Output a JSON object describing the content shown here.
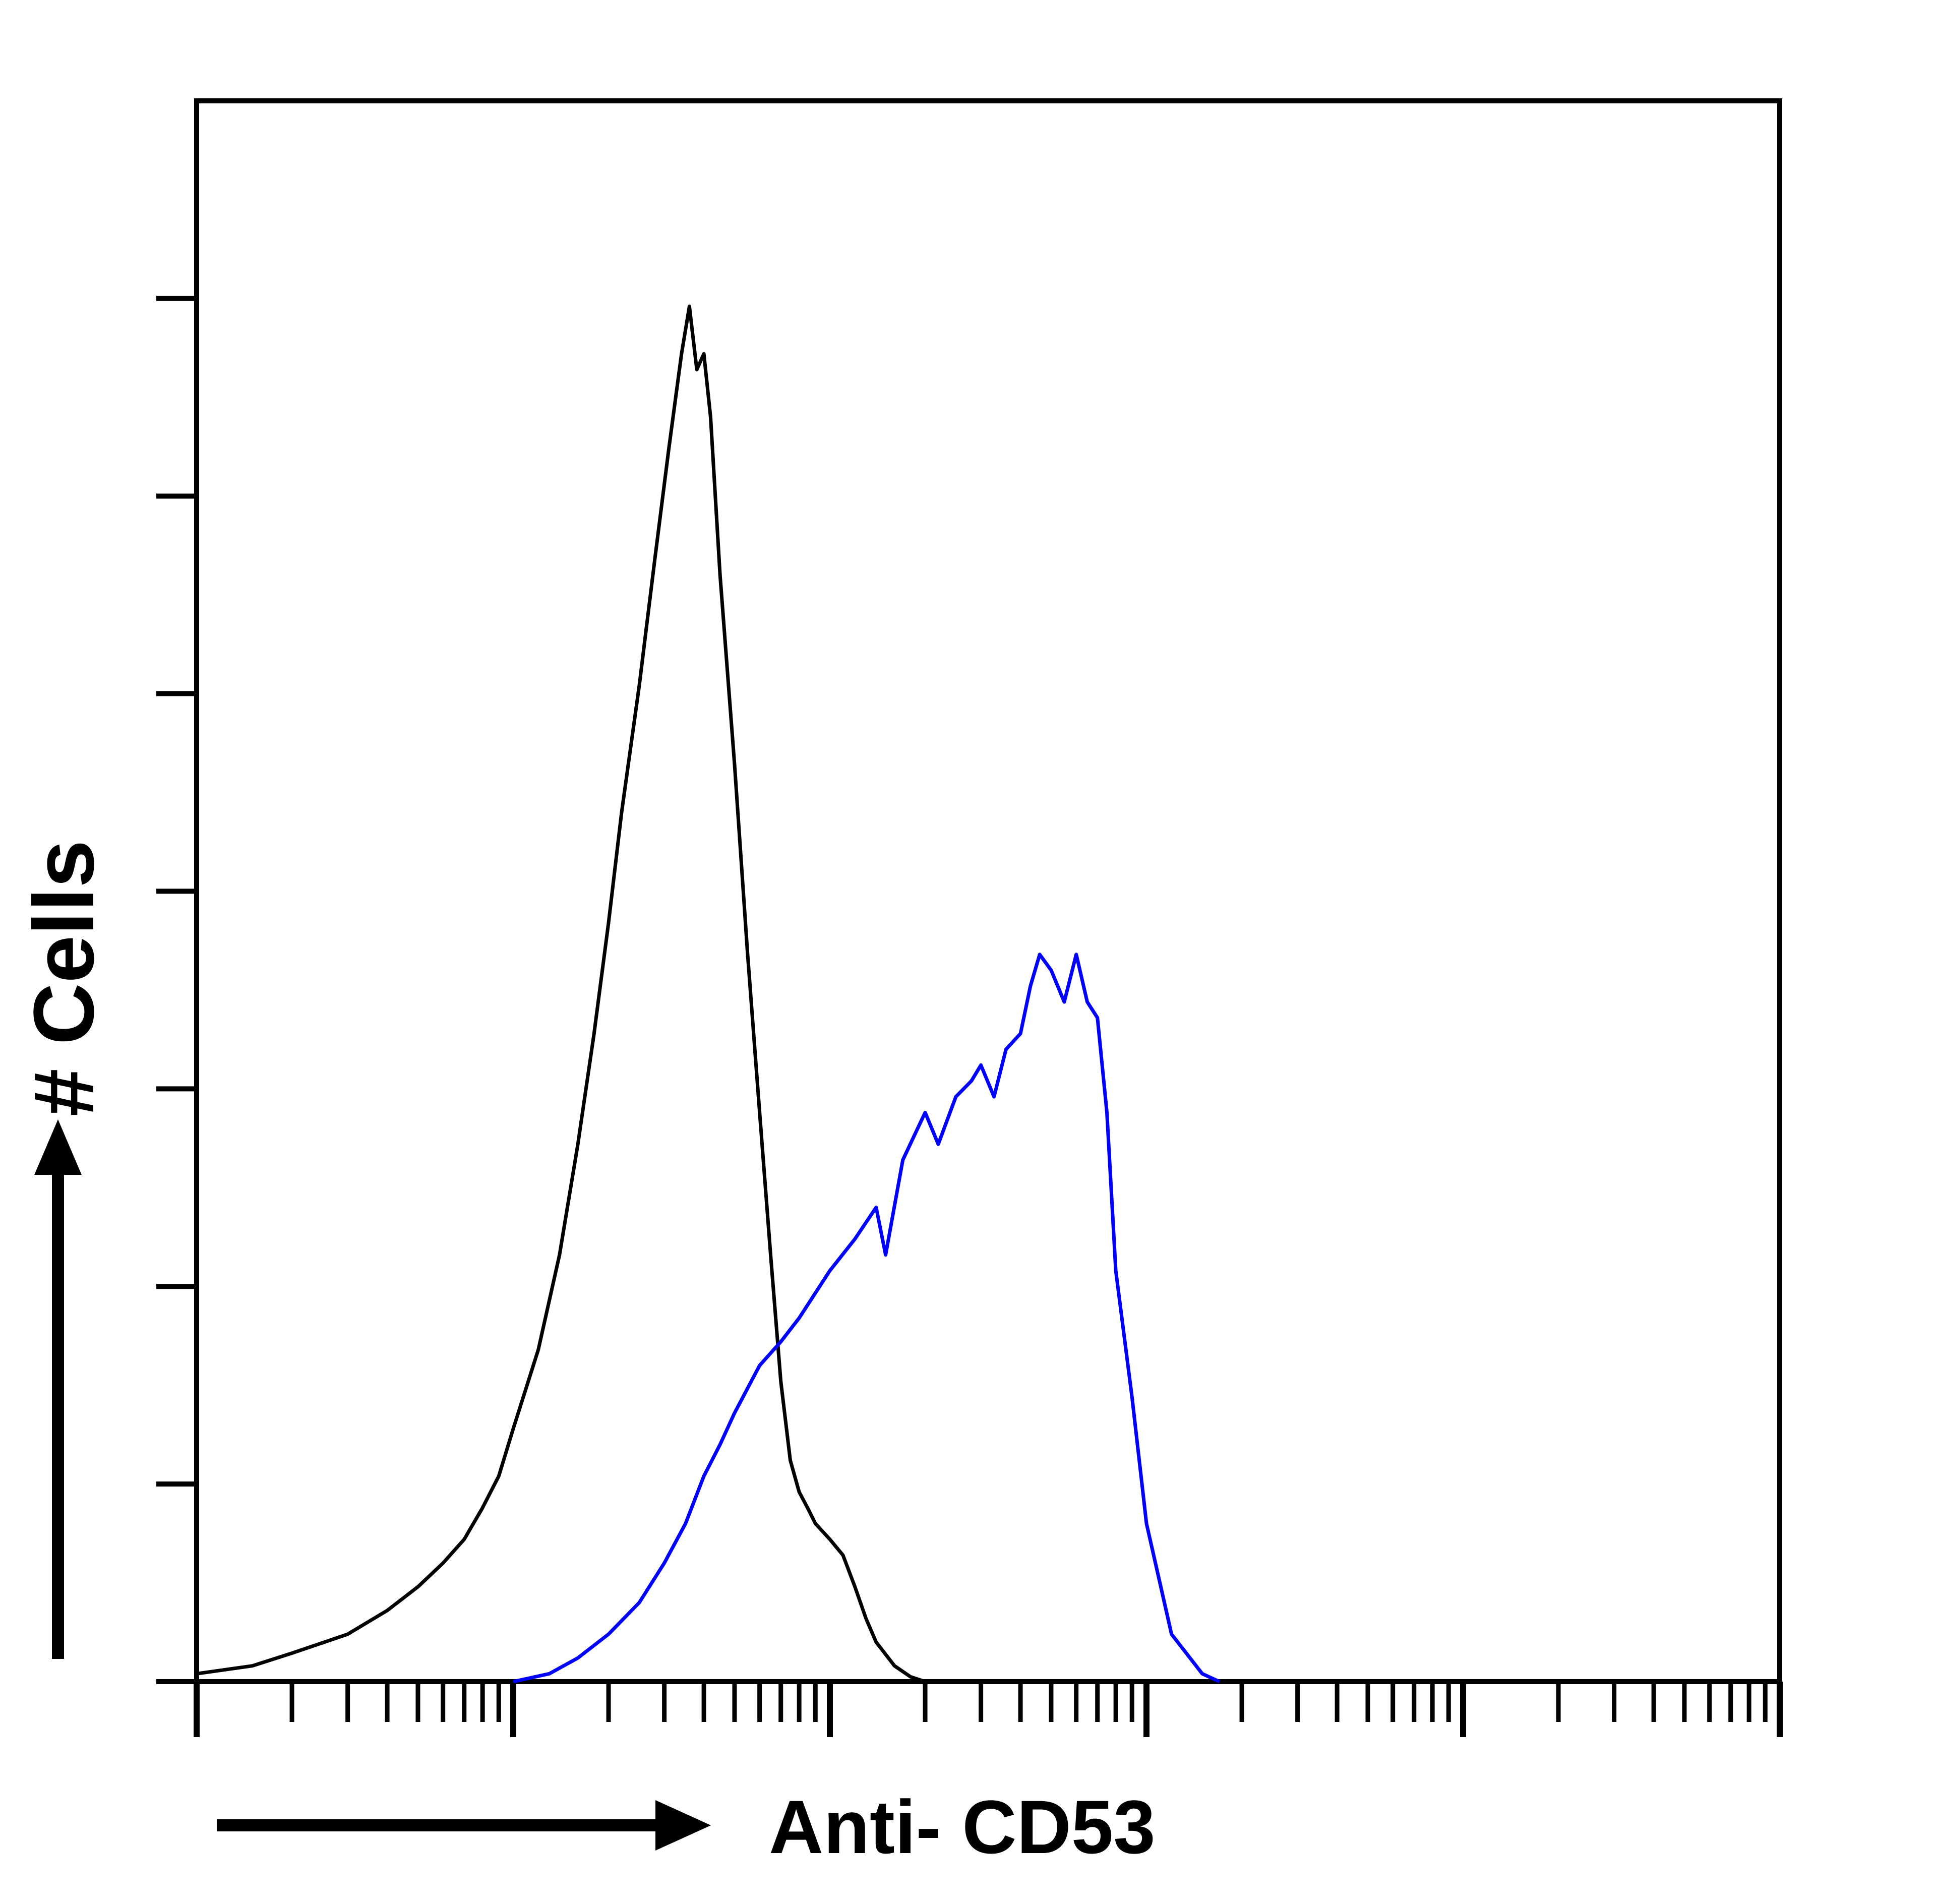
{
  "chart_data": {
    "type": "line",
    "title": "",
    "xlabel": "Anti- CD53",
    "ylabel": "# Cells",
    "xscale": "log",
    "xlim": [
      1,
      100000
    ],
    "ylim": [
      0,
      100
    ],
    "grid": false,
    "legend": "none",
    "series": [
      {
        "color": "#000000",
        "points": [
          [
            1,
            0.5
          ],
          [
            1.5,
            1
          ],
          [
            2,
            1.8
          ],
          [
            3,
            3
          ],
          [
            4,
            4.5
          ],
          [
            5,
            6
          ],
          [
            6,
            7.5
          ],
          [
            7,
            9
          ],
          [
            8,
            11
          ],
          [
            9,
            13
          ],
          [
            10,
            16
          ],
          [
            12,
            21
          ],
          [
            14,
            27
          ],
          [
            16,
            34
          ],
          [
            18,
            41
          ],
          [
            20,
            48
          ],
          [
            22,
            55
          ],
          [
            25,
            63
          ],
          [
            28,
            71
          ],
          [
            31,
            78
          ],
          [
            34,
            84
          ],
          [
            36,
            87
          ],
          [
            38,
            83
          ],
          [
            40,
            84
          ],
          [
            42,
            80
          ],
          [
            45,
            70
          ],
          [
            50,
            58
          ],
          [
            55,
            46
          ],
          [
            60,
            36
          ],
          [
            65,
            27
          ],
          [
            70,
            19
          ],
          [
            75,
            14
          ],
          [
            80,
            12
          ],
          [
            85,
            11
          ],
          [
            90,
            10
          ],
          [
            100,
            9
          ],
          [
            110,
            8
          ],
          [
            120,
            6
          ],
          [
            130,
            4
          ],
          [
            140,
            2.5
          ],
          [
            160,
            1
          ],
          [
            180,
            0.3
          ],
          [
            200,
            0
          ]
        ]
      },
      {
        "color": "#0000ff",
        "points": [
          [
            10,
            0
          ],
          [
            13,
            0.5
          ],
          [
            16,
            1.5
          ],
          [
            20,
            3
          ],
          [
            25,
            5
          ],
          [
            30,
            7.5
          ],
          [
            35,
            10
          ],
          [
            40,
            13
          ],
          [
            45,
            15
          ],
          [
            50,
            17
          ],
          [
            60,
            20
          ],
          [
            70,
            21.5
          ],
          [
            80,
            23
          ],
          [
            100,
            26
          ],
          [
            120,
            28
          ],
          [
            140,
            30
          ],
          [
            150,
            27
          ],
          [
            170,
            33
          ],
          [
            200,
            36
          ],
          [
            220,
            34
          ],
          [
            250,
            37
          ],
          [
            280,
            38
          ],
          [
            300,
            39
          ],
          [
            330,
            37
          ],
          [
            360,
            40
          ],
          [
            400,
            41
          ],
          [
            430,
            44
          ],
          [
            460,
            46
          ],
          [
            500,
            45
          ],
          [
            550,
            43
          ],
          [
            600,
            46
          ],
          [
            650,
            43
          ],
          [
            700,
            42
          ],
          [
            750,
            36
          ],
          [
            800,
            26
          ],
          [
            900,
            18
          ],
          [
            1000,
            10
          ],
          [
            1200,
            3
          ],
          [
            1500,
            0.5
          ],
          [
            1700,
            0
          ]
        ]
      }
    ]
  }
}
